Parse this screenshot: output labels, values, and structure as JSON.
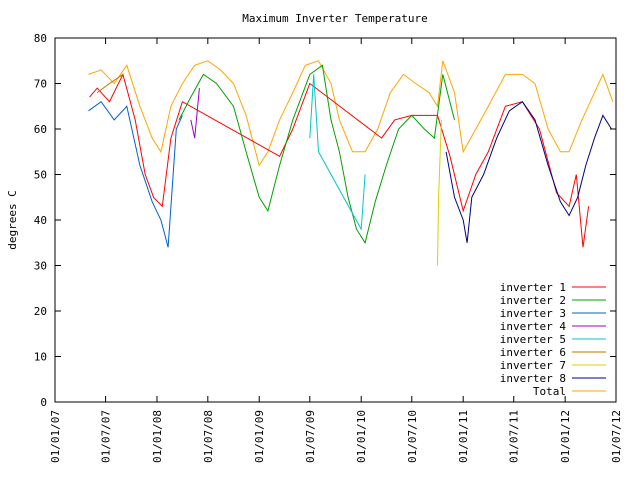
{
  "chart_data": {
    "type": "line",
    "title": "Maximum Inverter Temperature",
    "ylabel": "degrees C",
    "xlabel": "",
    "ylim": [
      0,
      80
    ],
    "yticks": [
      0,
      10,
      20,
      30,
      40,
      50,
      60,
      70,
      80
    ],
    "xlim": [
      "2007-01-01",
      "2012-07-01"
    ],
    "xticks": [
      "01/01/07",
      "01/07/07",
      "01/01/08",
      "01/07/08",
      "01/01/09",
      "01/07/09",
      "01/01/10",
      "01/07/10",
      "01/01/11",
      "01/07/11",
      "01/01/12",
      "01/07/12"
    ],
    "xtick_dates": [
      "2007-01-01",
      "2007-07-01",
      "2008-01-01",
      "2008-07-01",
      "2009-01-01",
      "2009-07-01",
      "2010-01-01",
      "2010-07-01",
      "2011-01-01",
      "2011-07-01",
      "2012-01-01",
      "2012-07-01"
    ],
    "legend_position": "bottom-right",
    "grid": false,
    "series": [
      {
        "name": "inverter 1",
        "color": "#ff0000",
        "points": [
          [
            "2007-05-05",
            67
          ],
          [
            "2007-06-01",
            69
          ],
          [
            "2007-07-15",
            66
          ],
          [
            "2007-09-01",
            72
          ],
          [
            "2007-10-15",
            62
          ],
          [
            "2007-11-20",
            50
          ],
          [
            "2007-12-20",
            45
          ],
          [
            "2008-01-20",
            43
          ],
          [
            "2008-02-20",
            58
          ],
          [
            "2008-04-01",
            66
          ],
          [
            "2009-03-15",
            54
          ],
          [
            "2009-05-01",
            60
          ],
          [
            "2009-07-01",
            70
          ],
          [
            "2010-03-15",
            58
          ],
          [
            "2010-05-01",
            62
          ],
          [
            "2010-07-01",
            63
          ],
          [
            "2010-10-01",
            63
          ],
          [
            "2010-11-15",
            54
          ],
          [
            "2011-01-01",
            42
          ],
          [
            "2011-02-15",
            50
          ],
          [
            "2011-04-01",
            55
          ],
          [
            "2011-06-01",
            65
          ],
          [
            "2011-08-01",
            66
          ],
          [
            "2011-10-01",
            60
          ],
          [
            "2011-12-01",
            46
          ],
          [
            "2012-01-15",
            43
          ],
          [
            "2012-02-10",
            50
          ],
          [
            "2012-03-05",
            34
          ],
          [
            "2012-03-25",
            43
          ]
        ]
      },
      {
        "name": "inverter 2",
        "color": "#00a000",
        "points": [
          [
            "2008-03-20",
            62
          ],
          [
            "2008-05-01",
            67
          ],
          [
            "2008-06-15",
            72
          ],
          [
            "2008-08-01",
            70
          ],
          [
            "2008-10-01",
            65
          ],
          [
            "2008-11-15",
            55
          ],
          [
            "2009-01-01",
            45
          ],
          [
            "2009-02-01",
            42
          ],
          [
            "2009-03-15",
            52
          ],
          [
            "2009-05-01",
            62
          ],
          [
            "2009-07-01",
            72
          ],
          [
            "2009-08-15",
            74
          ],
          [
            "2009-09-15",
            62
          ],
          [
            "2009-10-15",
            55
          ],
          [
            "2009-11-15",
            45
          ],
          [
            "2009-12-15",
            38
          ],
          [
            "2010-01-15",
            35
          ],
          [
            "2010-02-20",
            44
          ],
          [
            "2010-04-01",
            52
          ],
          [
            "2010-05-15",
            60
          ],
          [
            "2010-07-01",
            63
          ],
          [
            "2010-08-15",
            60
          ],
          [
            "2010-09-20",
            58
          ],
          [
            "2010-10-20",
            72
          ],
          [
            "2010-12-01",
            62
          ]
        ]
      },
      {
        "name": "inverter 3",
        "color": "#0060d0",
        "points": [
          [
            "2007-05-01",
            64
          ],
          [
            "2007-06-15",
            66
          ],
          [
            "2007-08-01",
            62
          ],
          [
            "2007-09-15",
            65
          ],
          [
            "2007-11-01",
            52
          ],
          [
            "2007-12-15",
            44
          ],
          [
            "2008-01-15",
            40
          ],
          [
            "2008-02-10",
            34
          ],
          [
            "2008-03-10",
            60
          ],
          [
            "2008-04-01",
            63
          ]
        ]
      },
      {
        "name": "inverter 4",
        "color": "#a000c0",
        "points": [
          [
            "2008-05-01",
            62
          ],
          [
            "2008-05-15",
            58
          ],
          [
            "2008-06-01",
            69
          ]
        ]
      },
      {
        "name": "inverter 5",
        "color": "#00c8c8",
        "points": [
          [
            "2009-07-01",
            58
          ],
          [
            "2009-07-15",
            72
          ],
          [
            "2009-08-01",
            55
          ],
          [
            "2010-01-01",
            38
          ],
          [
            "2010-01-15",
            50
          ]
        ]
      },
      {
        "name": "inverter 6",
        "color": "#c07000",
        "points": [
          [
            "2007-06-01",
            68
          ],
          [
            "2007-07-15",
            70
          ],
          [
            "2007-09-01",
            72
          ]
        ]
      },
      {
        "name": "inverter 7",
        "color": "#d8d000",
        "points": [
          [
            "2010-10-01",
            30
          ],
          [
            "2010-10-05",
            45
          ],
          [
            "2010-10-15",
            62
          ]
        ]
      },
      {
        "name": "inverter 8",
        "color": "#000080",
        "points": [
          [
            "2010-11-01",
            55
          ],
          [
            "2010-12-01",
            45
          ],
          [
            "2011-01-01",
            40
          ],
          [
            "2011-01-15",
            35
          ],
          [
            "2011-02-01",
            45
          ],
          [
            "2011-03-15",
            50
          ],
          [
            "2011-05-01",
            58
          ],
          [
            "2011-06-15",
            64
          ],
          [
            "2011-08-01",
            66
          ],
          [
            "2011-09-15",
            62
          ],
          [
            "2011-11-01",
            52
          ],
          [
            "2011-12-15",
            44
          ],
          [
            "2012-01-15",
            41
          ],
          [
            "2012-02-15",
            45
          ],
          [
            "2012-03-15",
            52
          ],
          [
            "2012-04-15",
            58
          ],
          [
            "2012-05-15",
            63
          ],
          [
            "2012-06-15",
            60
          ]
        ]
      },
      {
        "name": "Total",
        "color": "#ffa500",
        "points": [
          [
            "2007-05-01",
            72
          ],
          [
            "2007-06-15",
            73
          ],
          [
            "2007-08-01",
            70
          ],
          [
            "2007-09-15",
            74
          ],
          [
            "2007-11-01",
            65
          ],
          [
            "2007-12-15",
            58
          ],
          [
            "2008-01-15",
            55
          ],
          [
            "2008-02-20",
            65
          ],
          [
            "2008-04-01",
            70
          ],
          [
            "2008-05-15",
            74
          ],
          [
            "2008-07-01",
            75
          ],
          [
            "2008-08-15",
            73
          ],
          [
            "2008-10-01",
            70
          ],
          [
            "2008-11-15",
            63
          ],
          [
            "2009-01-01",
            52
          ],
          [
            "2009-02-01",
            55
          ],
          [
            "2009-03-15",
            62
          ],
          [
            "2009-05-01",
            68
          ],
          [
            "2009-06-15",
            74
          ],
          [
            "2009-08-01",
            75
          ],
          [
            "2009-09-15",
            70
          ],
          [
            "2009-10-15",
            62
          ],
          [
            "2009-12-01",
            55
          ],
          [
            "2010-01-15",
            55
          ],
          [
            "2010-03-01",
            60
          ],
          [
            "2010-04-15",
            68
          ],
          [
            "2010-06-01",
            72
          ],
          [
            "2010-07-15",
            70
          ],
          [
            "2010-09-01",
            68
          ],
          [
            "2010-10-01",
            65
          ],
          [
            "2010-10-20",
            75
          ],
          [
            "2010-12-01",
            68
          ],
          [
            "2011-01-01",
            55
          ],
          [
            "2011-02-15",
            60
          ],
          [
            "2011-04-01",
            65
          ],
          [
            "2011-06-01",
            72
          ],
          [
            "2011-08-01",
            72
          ],
          [
            "2011-09-15",
            70
          ],
          [
            "2011-11-01",
            60
          ],
          [
            "2011-12-15",
            55
          ],
          [
            "2012-01-15",
            55
          ],
          [
            "2012-03-01",
            62
          ],
          [
            "2012-04-15",
            68
          ],
          [
            "2012-05-15",
            72
          ],
          [
            "2012-06-20",
            66
          ]
        ]
      }
    ]
  }
}
